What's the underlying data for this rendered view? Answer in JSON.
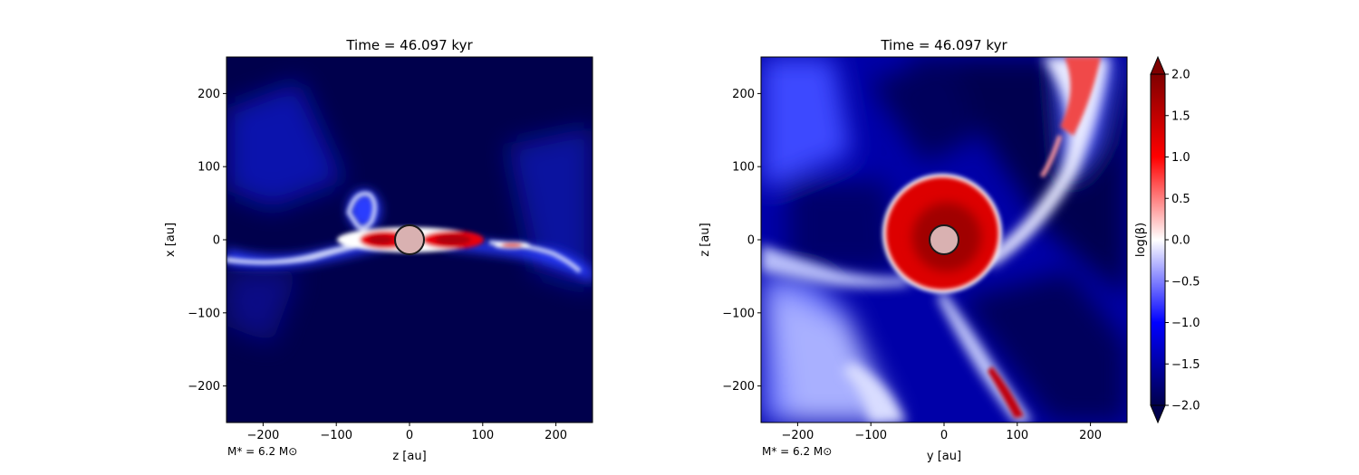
{
  "chart_data": [
    {
      "type": "heatmap",
      "title": "Time = 46.097 kyr",
      "xlabel": "z [au]",
      "ylabel": "x [au]",
      "xlim": [
        -250,
        250
      ],
      "ylim": [
        -250,
        250
      ],
      "xticks": [
        -200,
        -100,
        0,
        100,
        200
      ],
      "yticks": [
        -200,
        -100,
        0,
        100,
        200
      ],
      "annotation": "M* = 6.2 M⊙",
      "sink_radius_au": 20
    },
    {
      "type": "heatmap",
      "title": "Time = 46.097 kyr",
      "xlabel": "y [au]",
      "ylabel": "z [au]",
      "xlim": [
        -250,
        250
      ],
      "ylim": [
        -250,
        250
      ],
      "xticks": [
        -200,
        -100,
        0,
        100,
        200
      ],
      "yticks": [
        -200,
        -100,
        0,
        100,
        200
      ],
      "annotation": "M* = 6.2 M⊙",
      "sink_radius_au": 20
    }
  ],
  "colorbar": {
    "label": "log(β)",
    "range": [
      -2.0,
      2.0
    ],
    "ticks": [
      "2.0",
      "1.5",
      "1.0",
      "0.5",
      "0.0",
      "−0.5",
      "−1.0",
      "−1.5",
      "−2.0"
    ],
    "tick_values": [
      2.0,
      1.5,
      1.0,
      0.5,
      0.0,
      -0.5,
      -1.0,
      -1.5,
      -2.0
    ],
    "colormap": "seismic",
    "colors": {
      "low": "#00004c",
      "mid_low": "#0000ff",
      "mid": "#ffffff",
      "mid_high": "#ff0000",
      "high": "#7f0000"
    }
  }
}
